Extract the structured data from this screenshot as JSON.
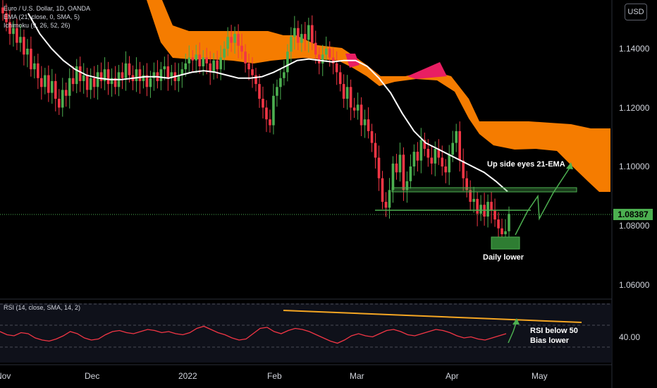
{
  "legend": {
    "symbol": "Euro / U.S. Dollar, 1D, OANDA",
    "ema": "EMA (21, close, 0, SMA, 5)",
    "ichimoku": "Ichimoku (9, 26, 52, 26)",
    "rsi": "RSI (14, close, SMA, 14, 2)"
  },
  "currency": "USD",
  "current_price": "1.08387",
  "rsi_value": "40.00",
  "colors": {
    "bull": "#4caf50",
    "bear": "#f23645",
    "ema": "#ffffff",
    "cloud_bear": "#f57c00",
    "cloud_bull": "#e91e63",
    "annotation": "#4caf50",
    "trendline": "#f5a623",
    "rsi_line": "#f23645",
    "background": "#000000"
  },
  "chart_data": [
    {
      "type": "candlestick",
      "title": "Euro / U.S. Dollar, 1D, OANDA",
      "x_tick_labels": [
        "Nov",
        "Dec",
        "2022",
        "Feb",
        "Mar",
        "Apr",
        "May"
      ],
      "y_tick_labels": [
        "1.14000",
        "1.12000",
        "1.10000",
        "1.08000",
        "1.06000"
      ],
      "ylim": [
        1.052,
        1.153
      ],
      "last_close": 1.08387,
      "candles_close_approx": [
        1.152,
        1.149,
        1.145,
        1.147,
        1.142,
        1.144,
        1.138,
        1.14,
        1.133,
        1.135,
        1.13,
        1.127,
        1.131,
        1.125,
        1.129,
        1.123,
        1.12,
        1.126,
        1.124,
        1.13,
        1.128,
        1.134,
        1.129,
        1.131,
        1.126,
        1.13,
        1.127,
        1.132,
        1.129,
        1.133,
        1.128,
        1.13,
        1.127,
        1.132,
        1.13,
        1.135,
        1.131,
        1.129,
        1.133,
        1.129,
        1.131,
        1.127,
        1.13,
        1.132,
        1.129,
        1.133,
        1.134,
        1.13,
        1.132,
        1.129,
        1.131,
        1.133,
        1.135,
        1.137,
        1.136,
        1.138,
        1.134,
        1.137,
        1.135,
        1.132,
        1.136,
        1.133,
        1.137,
        1.14,
        1.144,
        1.142,
        1.145,
        1.141,
        1.139,
        1.135,
        1.133,
        1.131,
        1.128,
        1.123,
        1.12,
        1.116,
        1.114,
        1.124,
        1.127,
        1.13,
        1.132,
        1.139,
        1.144,
        1.147,
        1.142,
        1.145,
        1.143,
        1.148,
        1.142,
        1.138,
        1.135,
        1.138,
        1.14,
        1.137,
        1.135,
        1.132,
        1.128,
        1.123,
        1.127,
        1.12,
        1.119,
        1.121,
        1.114,
        1.116,
        1.112,
        1.108,
        1.103,
        1.096,
        1.088,
        1.086,
        1.092,
        1.101,
        1.098,
        1.104,
        1.092,
        1.095,
        1.1,
        1.105,
        1.102,
        1.109,
        1.106,
        1.103,
        1.101,
        1.106,
        1.103,
        1.1,
        1.098,
        1.104,
        1.108,
        1.112,
        1.102,
        1.096,
        1.092,
        1.088,
        1.089,
        1.084,
        1.087,
        1.083,
        1.088,
        1.085,
        1.082,
        1.079,
        1.077,
        1.078,
        1.0839
      ],
      "ema21_approx": [
        1.152,
        1.145,
        1.14,
        1.136,
        1.133,
        1.131,
        1.13,
        1.1295,
        1.1295,
        1.13,
        1.1305,
        1.1305,
        1.13,
        1.131,
        1.132,
        1.1325,
        1.132,
        1.131,
        1.13,
        1.13,
        1.1305,
        1.132,
        1.134,
        1.136,
        1.1365,
        1.136,
        1.1355,
        1.136,
        1.136,
        1.134,
        1.13,
        1.125,
        1.118,
        1.112,
        1.108,
        1.106,
        1.104,
        1.102,
        1.1,
        1.098,
        1.095,
        1.0915
      ],
      "ichimoku_cloud": {
        "bearish_color": "#f57c00",
        "bullish_color": "#e91e63"
      },
      "annotations": [
        "Up side eyes 21-EMA",
        "Daily lower"
      ]
    },
    {
      "type": "line",
      "title": "RSI (14, close, SMA, 14, 2)",
      "y_tick_labels": [
        "40.00"
      ],
      "rsi_approx": [
        44,
        41,
        40,
        43,
        42,
        38,
        36,
        35,
        37,
        40,
        44,
        42,
        38,
        36,
        37,
        41,
        44,
        45,
        43,
        42,
        44,
        46,
        45,
        43,
        44,
        42,
        41,
        43,
        47,
        49,
        46,
        43,
        41,
        38,
        36,
        37,
        42,
        47,
        48,
        44,
        42,
        45,
        47,
        46,
        44,
        41,
        38,
        35,
        33,
        36,
        40,
        42,
        40,
        39,
        42,
        45,
        46,
        44,
        41,
        40,
        42,
        44,
        46,
        45,
        43,
        40,
        38,
        39,
        37,
        36,
        38,
        40,
        42
      ],
      "annotations": [
        "RSI below 50",
        "Bias lower"
      ]
    }
  ]
}
